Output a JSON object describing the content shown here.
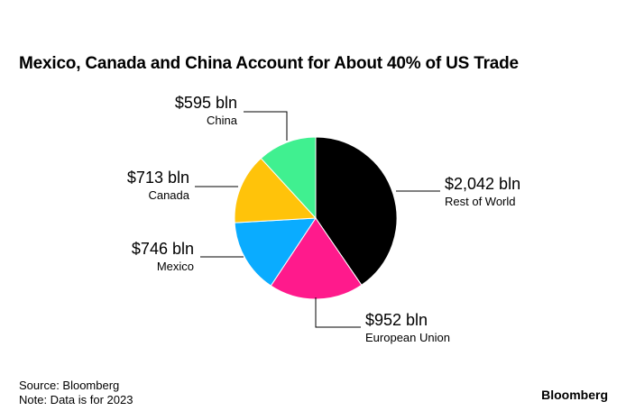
{
  "title": "Mexico, Canada and China Account for About 40% of US Trade",
  "footer": {
    "source": "Source: Bloomberg",
    "note": "Note: Data is for 2023"
  },
  "brand": "Bloomberg",
  "chart_data": {
    "type": "pie",
    "title": "Mexico, Canada and China Account for About 40% of US Trade",
    "unit": "bln",
    "slices": [
      {
        "label": "Rest of World",
        "value": 2042,
        "value_label": "$2,042 bln",
        "color": "#000000"
      },
      {
        "label": "European Union",
        "value": 952,
        "value_label": "$952 bln",
        "color": "#ff1a8c"
      },
      {
        "label": "Mexico",
        "value": 746,
        "value_label": "$746 bln",
        "color": "#0aacff"
      },
      {
        "label": "Canada",
        "value": 713,
        "value_label": "$713 bln",
        "color": "#ffc30a"
      },
      {
        "label": "China",
        "value": 595,
        "value_label": "$595 bln",
        "color": "#40f090"
      }
    ],
    "start": "top",
    "direction": "clockwise"
  }
}
